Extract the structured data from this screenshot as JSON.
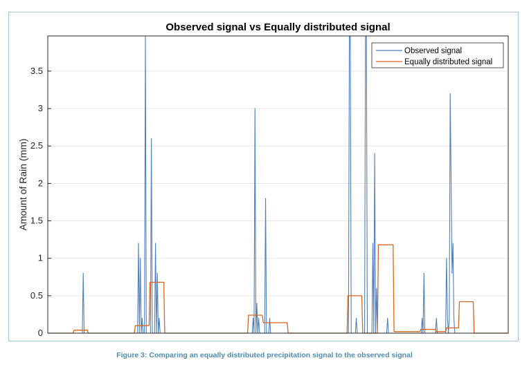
{
  "caption": "Figure 3: Comparing an equally distributed precipitation signal to the observed signal",
  "chart_data": {
    "type": "line",
    "title": "Observed signal vs Equally distributed signal",
    "xlabel": "",
    "ylabel": "Amount of Rain (mm)",
    "ylim": [
      0,
      3.97
    ],
    "xlim": [
      0,
      100
    ],
    "yticks": [
      0,
      0.5,
      1,
      1.5,
      2,
      2.5,
      3,
      3.5
    ],
    "ytick_labels": [
      "0",
      "0.5",
      "1",
      "1.5",
      "2",
      "2.5",
      "3",
      "3.5"
    ],
    "grid": true,
    "legend_position": "top-right",
    "series": [
      {
        "name": "Observed signal",
        "color": "#4f7fbf",
        "x": [
          0,
          7.5,
          7.7,
          7.9,
          19.5,
          19.7,
          19.9,
          20.1,
          20.3,
          20.5,
          20.7,
          21.0,
          21.2,
          21.4,
          22.3,
          22.5,
          22.7,
          23.2,
          23.4,
          23.6,
          23.8,
          24.0,
          24.2,
          24.4,
          24.6,
          24.8,
          25.0,
          25.2,
          25.4,
          44.4,
          44.6,
          44.8,
          45.0,
          45.2,
          45.4,
          45.6,
          45.8,
          46.0,
          46.2,
          46.4,
          47.1,
          47.3,
          47.5,
          48.0,
          48.2,
          48.4,
          49.2,
          49.4,
          49.6,
          65.3,
          65.5,
          65.7,
          65.9,
          66.8,
          67.0,
          67.2,
          68.8,
          69.0,
          69.2,
          69.4,
          70.4,
          70.6,
          70.8,
          71.0,
          71.2,
          71.4,
          71.6,
          71.8,
          72.0,
          73.6,
          73.8,
          74.0,
          74.2,
          74.4,
          81.1,
          81.3,
          81.5,
          81.7,
          81.9,
          82.1,
          84.2,
          84.4,
          84.6,
          84.8,
          86.4,
          86.6,
          86.8,
          87.0,
          87.2,
          87.4,
          87.6,
          87.8,
          88.0,
          88.2,
          88.4,
          88.6,
          100
        ],
        "y": [
          0,
          0,
          0.8,
          0,
          0,
          1.2,
          0,
          1.0,
          0,
          0.2,
          0,
          0,
          3.97,
          0,
          0,
          2.6,
          0,
          0,
          1.2,
          0,
          0.8,
          0,
          0.2,
          0,
          0,
          0,
          0,
          0,
          0,
          0,
          0.2,
          0,
          3.0,
          0,
          0.4,
          0,
          0.2,
          0,
          0,
          0,
          0,
          1.8,
          0,
          0,
          0.2,
          0,
          0,
          0,
          0,
          0,
          3.97,
          3.97,
          0,
          0,
          0.2,
          0,
          0,
          3.97,
          3.97,
          0,
          0,
          1.2,
          0,
          2.4,
          0,
          0.6,
          0,
          0,
          0,
          0,
          0.2,
          0,
          0,
          0,
          0,
          0.2,
          0,
          0.8,
          0,
          0,
          0,
          0.2,
          0,
          0,
          0,
          1.0,
          0.2,
          0,
          0.2,
          3.2,
          2.0,
          0.8,
          1.2,
          0.2,
          0,
          0,
          0
        ]
      },
      {
        "name": "Equally distributed signal",
        "color": "#d9651a",
        "x": [
          0,
          5.5,
          5.7,
          8.6,
          8.8,
          18.8,
          19.0,
          22.0,
          22.2,
          25.2,
          25.4,
          43.4,
          43.6,
          46.6,
          46.8,
          52.0,
          52.2,
          65.0,
          65.2,
          68.2,
          68.4,
          71.6,
          71.8,
          75.0,
          75.2,
          80.8,
          81.0,
          84.2,
          84.4,
          86.4,
          86.6,
          89.2,
          89.4,
          92.4,
          92.6,
          100
        ],
        "y": [
          0,
          0,
          0.04,
          0.04,
          0,
          0,
          0.1,
          0.1,
          0.68,
          0.68,
          0,
          0,
          0.24,
          0.24,
          0.14,
          0.14,
          0,
          0,
          0.5,
          0.5,
          0,
          0,
          1.18,
          1.18,
          0.02,
          0.02,
          0.05,
          0.05,
          0.02,
          0.02,
          0.07,
          0.07,
          0.42,
          0.42,
          0,
          0
        ]
      }
    ]
  }
}
